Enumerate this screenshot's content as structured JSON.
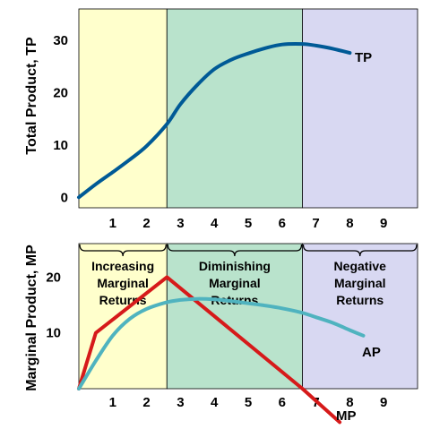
{
  "colors": {
    "increasing_region": "#ffffcc",
    "diminishing_region": "#b9e3cc",
    "negative_region": "#d8d8f2",
    "tp_line": "#005a96",
    "mp_line": "#d61a1a",
    "ap_line": "#4fb3bf"
  },
  "chart_data": [
    {
      "type": "line",
      "ylabel": "Total Product, TP",
      "xlim": [
        0,
        10
      ],
      "ylim": [
        -2,
        36
      ],
      "x_ticks": [
        1,
        2,
        3,
        4,
        5,
        6,
        7,
        8,
        9
      ],
      "y_ticks": [
        0,
        10,
        20,
        30
      ],
      "regions": [
        {
          "from": 0,
          "to": 2.6,
          "color": "#ffffcc"
        },
        {
          "from": 2.6,
          "to": 6.6,
          "color": "#b9e3cc"
        },
        {
          "from": 6.6,
          "to": 10,
          "color": "#d8d8f2"
        }
      ],
      "series": [
        {
          "name": "TP",
          "color": "#005a96",
          "x": [
            0,
            0.5,
            1,
            1.5,
            2,
            2.6,
            3,
            3.5,
            4,
            4.5,
            5,
            5.5,
            6,
            6.6,
            7,
            7.5,
            8
          ],
          "y": [
            0,
            2.5,
            4.8,
            7.2,
            9.8,
            14,
            17.8,
            21.5,
            24.5,
            26.3,
            27.5,
            28.5,
            29.2,
            29.3,
            29,
            28.4,
            27.6
          ]
        }
      ]
    },
    {
      "type": "line",
      "ylabel": "Marginal Product, MP",
      "xlim": [
        0,
        10
      ],
      "ylim": [
        0,
        26
      ],
      "x_ticks": [
        1,
        2,
        3,
        4,
        5,
        6,
        7,
        8,
        9
      ],
      "y_ticks": [
        10,
        20
      ],
      "regions": [
        {
          "from": 0,
          "to": 2.6,
          "color": "#ffffcc",
          "label": [
            "Increasing",
            "Marginal",
            "Returns"
          ]
        },
        {
          "from": 2.6,
          "to": 6.6,
          "color": "#b9e3cc",
          "label": [
            "Diminishing",
            "Marginal",
            "Returns"
          ]
        },
        {
          "from": 6.6,
          "to": 10,
          "color": "#d8d8f2",
          "label": [
            "Negative",
            "Marginal",
            "Returns"
          ]
        }
      ],
      "series": [
        {
          "name": "MP",
          "color": "#d61a1a",
          "x": [
            0,
            0.5,
            2.6,
            6.6,
            7.7
          ],
          "y": [
            0,
            10,
            20,
            0,
            -6
          ]
        },
        {
          "name": "AP",
          "color": "#4fb3bf",
          "x": [
            0,
            0.5,
            1,
            1.5,
            2,
            2.6,
            3,
            3.5,
            4,
            4.5,
            5,
            5.5,
            6,
            6.6,
            7,
            7.5,
            8,
            8.4
          ],
          "y": [
            0,
            5,
            9.5,
            12.5,
            14.3,
            15.5,
            15.9,
            16.1,
            16,
            15.7,
            15.3,
            14.9,
            14.4,
            13.6,
            12.8,
            11.8,
            10.5,
            9.5
          ]
        }
      ]
    }
  ]
}
